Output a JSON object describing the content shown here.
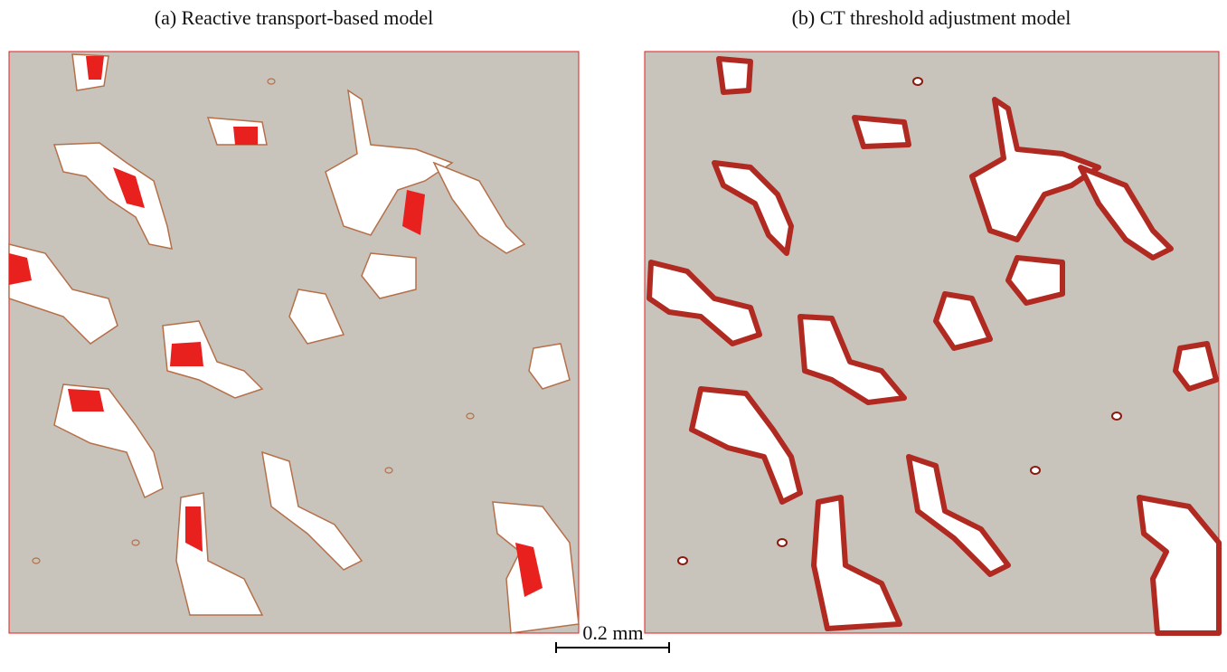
{
  "panels": [
    {
      "title": "(a) Reactive transport-based model"
    },
    {
      "title": "(b) CT threshold adjustment model"
    }
  ],
  "scale_bar": {
    "label": "0.2 mm"
  }
}
